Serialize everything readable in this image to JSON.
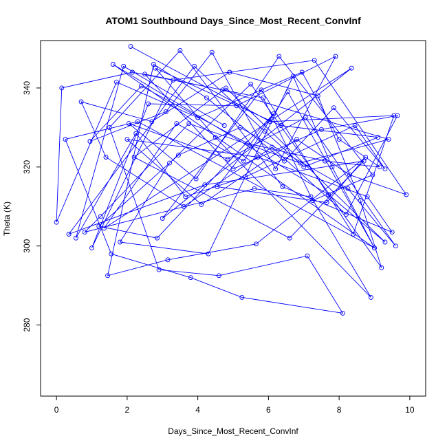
{
  "chart_data": {
    "type": "line",
    "title": "ATOM1 Southbound Days_Since_Most_Recent_ConvInf",
    "xlabel": "Days_Since_Most_Recent_ConvInf",
    "ylabel": "Theta (K)",
    "xlim": [
      -0.45,
      10.45
    ],
    "ylim": [
      262,
      352
    ],
    "xticks": [
      "0",
      "2",
      "4",
      "6",
      "8",
      "10"
    ],
    "yticks": [
      "280",
      "300",
      "320",
      "340"
    ],
    "grid": false,
    "legend": "none",
    "series": [
      {
        "color": "#0000ff",
        "marker": "open-circle",
        "points": [
          [
            2.1,
            350.5
          ],
          [
            6.05,
            331.5
          ],
          [
            9.55,
            333.0
          ],
          [
            8.4,
            303.0
          ],
          [
            5.8,
            339.5
          ],
          [
            3.0,
            307.0
          ],
          [
            8.35,
            345.0
          ],
          [
            1.35,
            304.5
          ],
          [
            3.4,
            331.0
          ],
          [
            5.3,
            321.5
          ],
          [
            6.55,
            339.0
          ],
          [
            9.0,
            299.5
          ],
          [
            1.6,
            346.0
          ],
          [
            7.7,
            313.0
          ],
          [
            9.3,
            301.0
          ],
          [
            4.8,
            340.0
          ],
          [
            2.2,
            322.5
          ],
          [
            6.6,
            302.0
          ],
          [
            8.7,
            321.5
          ],
          [
            4.2,
            315.5
          ],
          [
            0.35,
            303.0
          ],
          [
            3.9,
            345.5
          ],
          [
            5.9,
            329.0
          ],
          [
            7.0,
            320.0
          ],
          [
            9.1,
            327.5
          ],
          [
            6.35,
            330.5
          ],
          [
            2.8,
            345.0
          ],
          [
            4.5,
            327.5
          ],
          [
            8.9,
            287.0
          ],
          [
            7.2,
            312.5
          ],
          [
            5.6,
            314.5
          ],
          [
            0.8,
            303.5
          ],
          [
            1.25,
            307.5
          ],
          [
            3.75,
            331.0
          ],
          [
            6.9,
            321.0
          ],
          [
            9.4,
            327.0
          ],
          [
            4.7,
            339.5
          ],
          [
            2.5,
            343.5
          ],
          [
            5.0,
            319.5
          ],
          [
            7.5,
            329.5
          ],
          [
            9.65,
            333.0
          ],
          [
            8.2,
            308.0
          ],
          [
            6.1,
            325.0
          ],
          [
            3.6,
            310.0
          ],
          [
            1.4,
            322.5
          ],
          [
            0.7,
            336.5
          ],
          [
            2.7,
            331.5
          ],
          [
            4.9,
            344.0
          ],
          [
            7.4,
            338.0
          ],
          [
            8.6,
            311.5
          ],
          [
            9.2,
            294.5
          ],
          [
            5.5,
            341.0
          ],
          [
            3.2,
            321.0
          ],
          [
            1.8,
            301.0
          ],
          [
            4.3,
            298.0
          ],
          [
            6.7,
            343.0
          ],
          [
            7.8,
            320.0
          ],
          [
            9.0,
            299.5
          ],
          [
            2.3,
            331.5
          ],
          [
            0.25,
            327.0
          ],
          [
            1.55,
            298.0
          ],
          [
            3.8,
            292.0
          ],
          [
            5.25,
            287.0
          ],
          [
            8.1,
            283.0
          ],
          [
            7.1,
            297.5
          ],
          [
            4.6,
            292.5
          ],
          [
            2.9,
            294.0
          ],
          [
            1.5,
            330.0
          ],
          [
            3.5,
            349.5
          ],
          [
            6.4,
            315.0
          ],
          [
            9.5,
            303.5
          ],
          [
            8.8,
            312.5
          ],
          [
            5.7,
            322.5
          ],
          [
            2.0,
            327.0
          ],
          [
            4.1,
            310.5
          ],
          [
            6.8,
            327.0
          ],
          [
            8.3,
            318.0
          ],
          [
            9.9,
            313.0
          ],
          [
            7.3,
            347.0
          ],
          [
            3.3,
            342.0
          ],
          [
            1.0,
            299.5
          ],
          [
            2.6,
            336.0
          ],
          [
            5.1,
            335.5
          ],
          [
            7.9,
            348.0
          ],
          [
            6.2,
            319.5
          ],
          [
            4.4,
            349.0
          ],
          [
            3.1,
            334.0
          ],
          [
            0.95,
            326.5
          ],
          [
            2.4,
            340.5
          ],
          [
            5.4,
            326.0
          ],
          [
            7.6,
            321.5
          ],
          [
            9.15,
            320.0
          ],
          [
            8.0,
            327.0
          ],
          [
            6.95,
            344.0
          ],
          [
            4.0,
            332.5
          ],
          [
            1.7,
            341.5
          ],
          [
            0.0,
            306.0
          ],
          [
            0.15,
            340.0
          ],
          [
            2.15,
            344.0
          ],
          [
            5.85,
            337.5
          ],
          [
            7.25,
            311.5
          ],
          [
            8.95,
            318.0
          ],
          [
            6.3,
            348.0
          ],
          [
            3.95,
            317.0
          ],
          [
            2.05,
            331.0
          ],
          [
            4.85,
            322.0
          ],
          [
            7.05,
            332.5
          ],
          [
            9.6,
            300.0
          ],
          [
            8.25,
            314.5
          ],
          [
            5.2,
            330.0
          ],
          [
            3.45,
            323.0
          ],
          [
            1.2,
            305.0
          ],
          [
            2.85,
            302.0
          ],
          [
            6.15,
            333.5
          ],
          [
            4.55,
            315.0
          ],
          [
            7.65,
            311.0
          ],
          [
            8.75,
            322.5
          ],
          [
            5.65,
            300.5
          ],
          [
            3.15,
            296.5
          ],
          [
            1.45,
            292.5
          ],
          [
            2.75,
            346.0
          ],
          [
            4.25,
            337.5
          ],
          [
            6.45,
            321.5
          ],
          [
            7.85,
            335.0
          ],
          [
            9.3,
            319.5
          ],
          [
            8.45,
            330.5
          ],
          [
            5.35,
            317.5
          ],
          [
            3.65,
            312.5
          ],
          [
            2.25,
            328.5
          ],
          [
            0.55,
            302.0
          ],
          [
            1.9,
            345.5
          ],
          [
            4.75,
            330.5
          ]
        ]
      }
    ]
  }
}
